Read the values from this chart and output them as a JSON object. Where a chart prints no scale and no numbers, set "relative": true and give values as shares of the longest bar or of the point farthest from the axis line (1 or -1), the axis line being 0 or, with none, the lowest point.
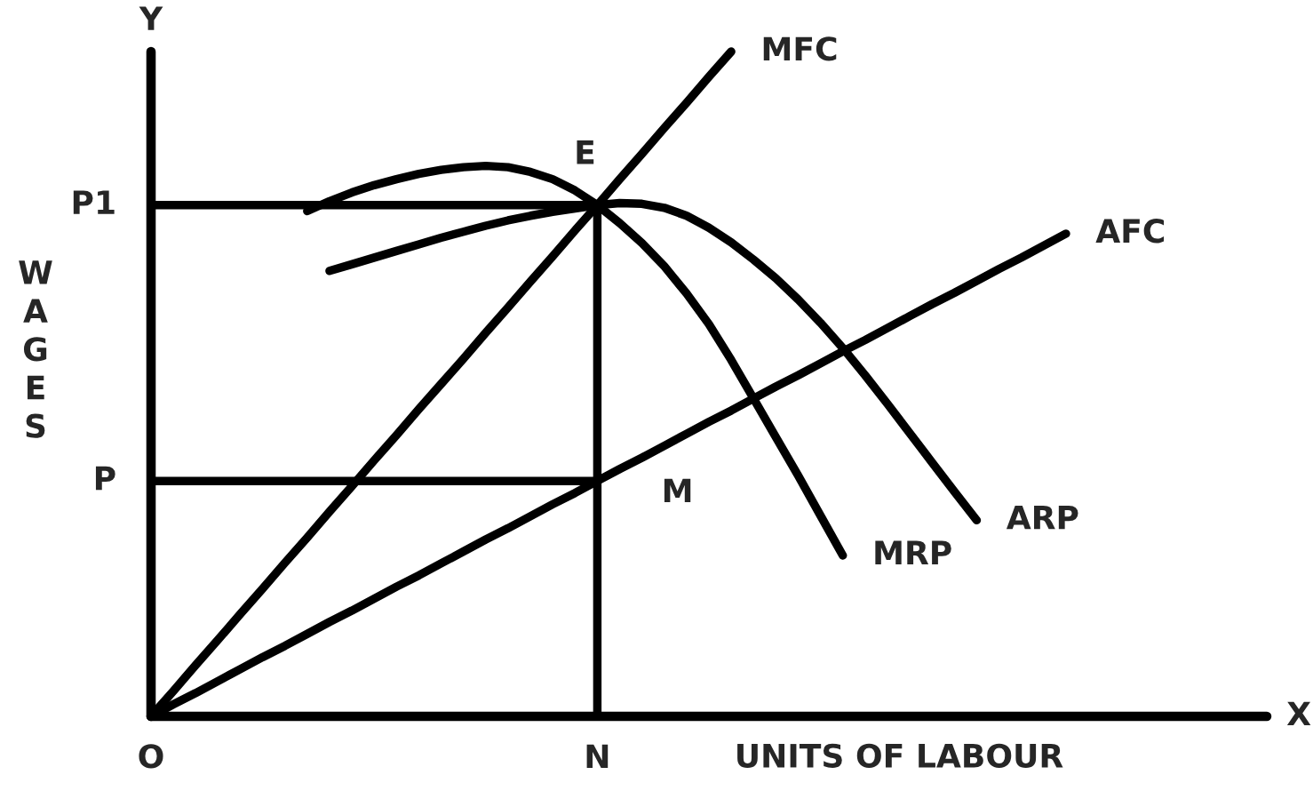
{
  "chart_data": {
    "type": "line",
    "relative": true,
    "line_style": "solid",
    "xlabel": "UNITS OF LABOUR",
    "ylabel": "WAGES",
    "categories": [
      "O",
      null,
      null,
      null,
      null,
      null,
      null,
      null,
      null,
      null,
      null,
      null,
      null,
      null,
      null,
      null,
      null,
      null,
      null,
      null,
      "N",
      null,
      null,
      null,
      null,
      null,
      null,
      null,
      null,
      null,
      null,
      null,
      null,
      null,
      null,
      null,
      null,
      null,
      null,
      null,
      null,
      null,
      null,
      null,
      null,
      null,
      null,
      null,
      null,
      null,
      null
    ],
    "series": [
      {
        "name": "MFC",
        "color": "#000000",
        "values": [
          0,
          0.038,
          0.077,
          0.115,
          0.154,
          0.192,
          0.231,
          0.269,
          0.308,
          0.346,
          0.385,
          0.423,
          0.462,
          0.5,
          0.538,
          0.577,
          0.615,
          0.654,
          0.692,
          0.731,
          0.769,
          0.808,
          0.846,
          0.885,
          0.923,
          0.962,
          1.0,
          null,
          null,
          null,
          null,
          null,
          null,
          null,
          null,
          null,
          null,
          null,
          null,
          null,
          null,
          null,
          null,
          null,
          null,
          null,
          null,
          null,
          null,
          null,
          null
        ]
      },
      {
        "name": "AFC",
        "color": "#000000",
        "values": [
          0,
          0.018,
          0.035,
          0.053,
          0.071,
          0.089,
          0.106,
          0.124,
          0.142,
          0.159,
          0.177,
          0.195,
          0.212,
          0.23,
          0.248,
          0.266,
          0.283,
          0.301,
          0.319,
          0.336,
          0.354,
          0.372,
          0.389,
          0.407,
          0.425,
          0.443,
          0.46,
          0.478,
          0.496,
          0.513,
          0.531,
          0.549,
          0.566,
          0.584,
          0.602,
          0.62,
          0.637,
          0.655,
          0.673,
          0.69,
          0.708,
          0.726,
          null,
          null,
          null,
          null,
          null,
          null,
          null,
          null,
          null
        ]
      },
      {
        "name": "MRP",
        "color": "#000000",
        "values": [
          null,
          null,
          null,
          null,
          null,
          null,
          null,
          0.76,
          0.775,
          0.788,
          0.799,
          0.808,
          0.816,
          0.822,
          0.826,
          0.828,
          0.826,
          0.819,
          0.808,
          0.791,
          0.769,
          0.742,
          0.712,
          0.677,
          0.636,
          0.59,
          0.536,
          0.478,
          0.42,
          0.362,
          0.302,
          0.242,
          null,
          null,
          null,
          null,
          null,
          null,
          null,
          null,
          null,
          null,
          null,
          null,
          null,
          null,
          null,
          null,
          null,
          null,
          null
        ]
      },
      {
        "name": "ARP",
        "color": "#000000",
        "values": [
          null,
          null,
          null,
          null,
          null,
          null,
          null,
          null,
          0.67,
          0.68,
          0.69,
          0.7,
          0.71,
          0.72,
          0.729,
          0.738,
          0.746,
          0.753,
          0.759,
          0.764,
          0.769,
          0.772,
          0.771,
          0.765,
          0.753,
          0.735,
          0.713,
          0.687,
          0.659,
          0.627,
          0.592,
          0.554,
          0.513,
          0.47,
          0.426,
          0.382,
          0.338,
          0.295,
          null,
          null,
          null,
          null,
          null,
          null,
          null,
          null,
          null,
          null,
          null,
          null,
          null
        ]
      },
      {
        "color": "#000000",
        "x": [
          "O",
          "N"
        ],
        "values": [
          0.769,
          0.769
        ]
      },
      {
        "color": "#000000",
        "x": [
          "O",
          "N"
        ],
        "values": [
          0.354,
          0.354
        ]
      },
      {
        "color": "#000000",
        "x": [
          "N",
          "N"
        ],
        "values": [
          0,
          0.769
        ]
      }
    ],
    "annotations": [
      "X",
      "Y",
      {
        "text": "E",
        "x": "N",
        "y": 0.769
      },
      {
        "text": "M",
        "x": "N",
        "y": 0.354
      },
      {
        "text": "P1",
        "x": "O",
        "y": 0.769
      },
      {
        "text": "P",
        "x": "O",
        "y": 0.354
      }
    ]
  }
}
